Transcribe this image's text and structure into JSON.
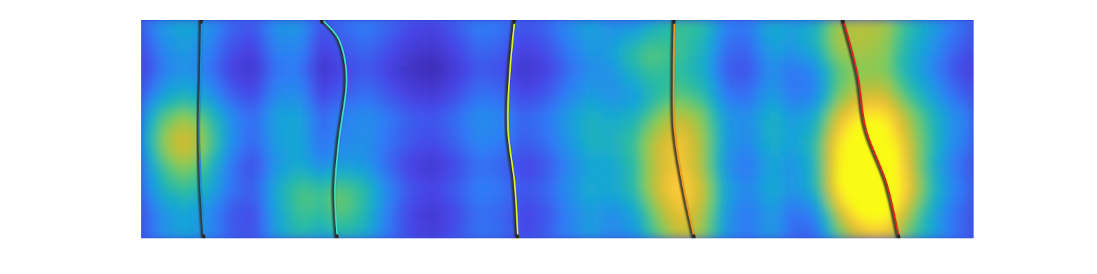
{
  "chart_data": {
    "type": "heatmap",
    "title": "",
    "xlabel": "",
    "ylabel": "",
    "axes_visible": false,
    "grid": false,
    "colormap": "parula",
    "colormap_stops": [
      "#3e26a8",
      "#4744e6",
      "#2f7cf6",
      "#16a5d7",
      "#2bbd9f",
      "#81cb58",
      "#d1bb2f",
      "#feca3a",
      "#f9fb15"
    ],
    "x_range": [
      0,
      1
    ],
    "y_range": [
      0,
      1
    ],
    "column_intensity": [
      0.14,
      0.3,
      0.36,
      0.28,
      0.16,
      0.12,
      0.28,
      0.3,
      0.12,
      0.18,
      0.22,
      0.16,
      0.1,
      0.08,
      0.14,
      0.22,
      0.2,
      0.12,
      0.16,
      0.26,
      0.32,
      0.2,
      0.16,
      0.3,
      0.46,
      0.44,
      0.22,
      0.2,
      0.32,
      0.16,
      0.12,
      0.4,
      0.56,
      0.62,
      0.46,
      0.34,
      0.22,
      0.14
    ],
    "row_modulation": [
      0.05,
      0.0,
      -0.05,
      0.0,
      0.08,
      0.06,
      0.0,
      0.04,
      0.0,
      0.02
    ],
    "hotspots": [
      {
        "x": 0.05,
        "y": 0.58,
        "r": 0.05,
        "strength": 0.35
      },
      {
        "x": 0.23,
        "y": 0.85,
        "r": 0.055,
        "strength": 0.4
      },
      {
        "x": 0.6,
        "y": 0.18,
        "r": 0.04,
        "strength": 0.35
      },
      {
        "x": 0.62,
        "y": 0.6,
        "r": 0.06,
        "strength": 0.35
      },
      {
        "x": 0.64,
        "y": 0.88,
        "r": 0.06,
        "strength": 0.3
      },
      {
        "x": 0.86,
        "y": 0.63,
        "r": 0.07,
        "strength": 0.5
      },
      {
        "x": 0.88,
        "y": 0.8,
        "r": 0.05,
        "strength": 0.35
      },
      {
        "x": 0.82,
        "y": 0.1,
        "r": 0.05,
        "strength": 0.3
      }
    ],
    "series": [
      {
        "color": "#1e8fd8",
        "points": [
          [
            0.072,
            0.0
          ],
          [
            0.071,
            0.25
          ],
          [
            0.069,
            0.5
          ],
          [
            0.071,
            0.75
          ],
          [
            0.075,
            1.0
          ]
        ]
      },
      {
        "color": "#3de0c5",
        "points": [
          [
            0.217,
            0.0
          ],
          [
            0.238,
            0.1
          ],
          [
            0.246,
            0.28
          ],
          [
            0.237,
            0.55
          ],
          [
            0.232,
            0.78
          ],
          [
            0.235,
            1.0
          ]
        ]
      },
      {
        "color": "#dcef2a",
        "points": [
          [
            0.448,
            0.0
          ],
          [
            0.442,
            0.25
          ],
          [
            0.44,
            0.5
          ],
          [
            0.448,
            0.75
          ],
          [
            0.452,
            1.0
          ]
        ]
      },
      {
        "color": "#f29a1e",
        "points": [
          [
            0.64,
            0.0
          ],
          [
            0.639,
            0.25
          ],
          [
            0.64,
            0.5
          ],
          [
            0.65,
            0.75
          ],
          [
            0.664,
            1.0
          ]
        ]
      },
      {
        "color": "#e8211c",
        "points": [
          [
            0.843,
            0.0
          ],
          [
            0.86,
            0.25
          ],
          [
            0.87,
            0.5
          ],
          [
            0.895,
            0.75
          ],
          [
            0.91,
            1.0
          ]
        ]
      }
    ]
  }
}
